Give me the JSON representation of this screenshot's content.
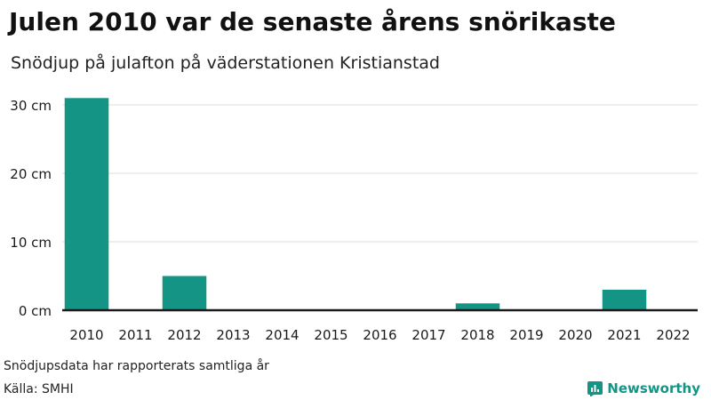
{
  "title": "Julen 2010 var de senaste årens snörikaste",
  "subtitle": "Snödjup på julafton på väderstationen Kristianstad",
  "footnote": "Snödjupsdata har rapporterats samtliga år",
  "source": "Källa: SMHI",
  "brand": {
    "name": "Newsworthy",
    "icon": "newsworthy-logo-icon"
  },
  "colors": {
    "bar": "#139485",
    "grid": "#dddddd",
    "axis": "#1a1a1a",
    "brand": "#139485"
  },
  "chart_data": {
    "type": "bar",
    "title": "Julen 2010 var de senaste årens snörikaste",
    "subtitle": "Snödjup på julafton på väderstationen Kristianstad",
    "categories": [
      "2010",
      "2011",
      "2012",
      "2013",
      "2014",
      "2015",
      "2016",
      "2017",
      "2018",
      "2019",
      "2020",
      "2021",
      "2022"
    ],
    "values": [
      31,
      0,
      5,
      0,
      0,
      0,
      0,
      0,
      1,
      0,
      0,
      3,
      0
    ],
    "ylim": [
      0,
      30
    ],
    "yticks": [
      0,
      10,
      20,
      30
    ],
    "ytick_labels": [
      "0 cm",
      "10 cm",
      "20 cm",
      "30 cm"
    ],
    "xlabel": "",
    "ylabel": "",
    "grid": true
  }
}
